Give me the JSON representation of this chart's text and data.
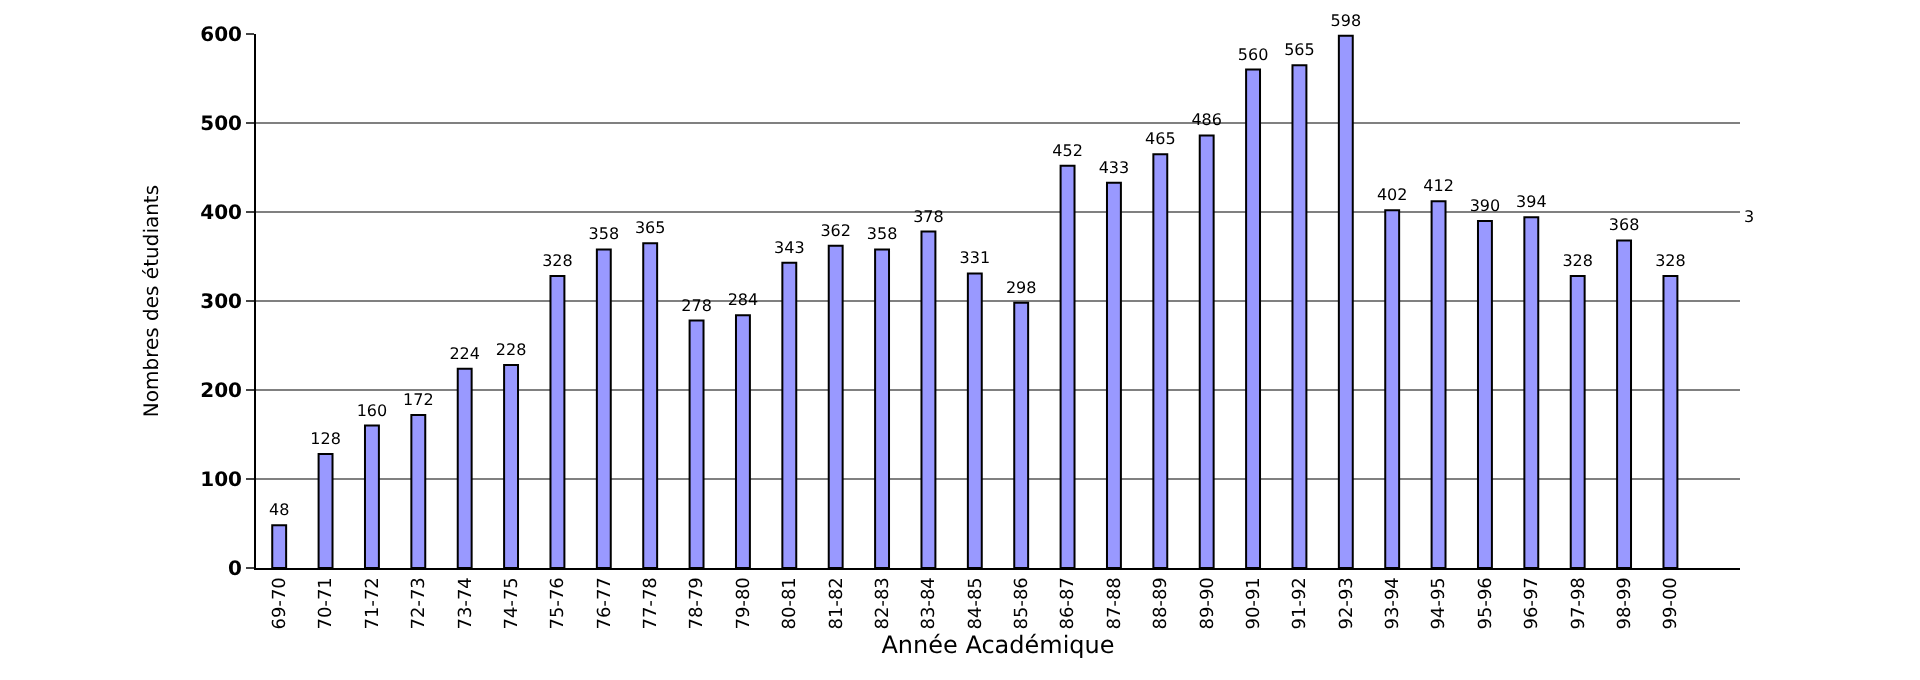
{
  "chart_data": {
    "type": "bar",
    "xlabel": "Année Académique",
    "ylabel": "Nombres des étudiants",
    "categories": [
      "69-70",
      "70-71",
      "71-72",
      "72-73",
      "73-74",
      "74-75",
      "75-76",
      "76-77",
      "77-78",
      "78-79",
      "79-80",
      "80-81",
      "81-82",
      "82-83",
      "83-84",
      "84-85",
      "85-86",
      "86-87",
      "87-88",
      "88-89",
      "89-90",
      "90-91",
      "91-92",
      "92-93",
      "93-94",
      "94-95",
      "95-96",
      "96-97",
      "97-98",
      "98-99",
      "99-00",
      null
    ],
    "values": [
      48,
      128,
      160,
      172,
      224,
      228,
      328,
      358,
      365,
      278,
      284,
      343,
      362,
      358,
      378,
      331,
      298,
      452,
      433,
      465,
      486,
      560,
      565,
      598,
      402,
      412,
      390,
      394,
      328,
      368,
      328,
      null
    ],
    "color": "#9999ff",
    "ylim": [
      0,
      600
    ],
    "yticks": [
      0,
      100,
      200,
      300,
      400,
      500,
      600
    ],
    "grid": "y",
    "data_labels": true,
    "annotations": [
      "3"
    ]
  }
}
